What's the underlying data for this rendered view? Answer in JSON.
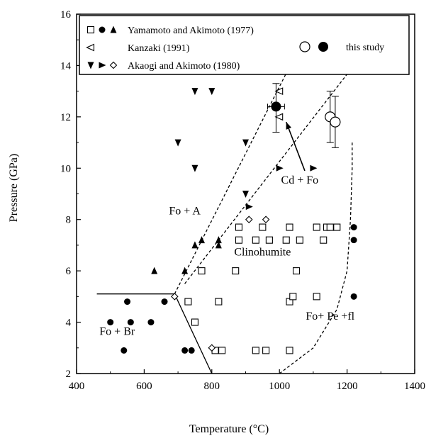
{
  "chart_data": {
    "type": "scatter",
    "title": "",
    "xlabel": "Temperature (°C)",
    "ylabel": "Pressure (GPa)",
    "xlim": [
      400,
      1400
    ],
    "ylim": [
      2,
      16
    ],
    "xticks": [
      400,
      600,
      800,
      1000,
      1200,
      1400
    ],
    "yticks": [
      2,
      4,
      6,
      8,
      10,
      12,
      14,
      16
    ],
    "grid": false,
    "legend": {
      "placement": "top",
      "entries": [
        {
          "label": "Yamamoto and Akimoto (1977)",
          "markers": [
            "open-square",
            "filled-circle",
            "filled-triangle-up"
          ]
        },
        {
          "label": "Kanzaki (1991)",
          "markers": [
            "open-triangle-left"
          ]
        },
        {
          "label": "Akaogi and Akimoto (1980)",
          "markers": [
            "filled-triangle-down",
            "filled-triangle-right",
            "open-diamond"
          ]
        },
        {
          "label": "this study",
          "markers": [
            "open-circle-large",
            "filled-circle-large"
          ]
        }
      ]
    },
    "series": [
      {
        "marker": "open-square",
        "points": [
          [
            730,
            4.8
          ],
          [
            750,
            4.0
          ],
          [
            770,
            6.0
          ],
          [
            820,
            4.8
          ],
          [
            810,
            2.9
          ],
          [
            830,
            2.9
          ],
          [
            870,
            6.0
          ],
          [
            880,
            7.7
          ],
          [
            880,
            7.2
          ],
          [
            930,
            7.2
          ],
          [
            930,
            2.9
          ],
          [
            950,
            7.7
          ],
          [
            960,
            2.9
          ],
          [
            970,
            7.2
          ],
          [
            1020,
            7.2
          ],
          [
            1030,
            4.8
          ],
          [
            1030,
            7.7
          ],
          [
            1040,
            5.0
          ],
          [
            1050,
            6.0
          ],
          [
            1060,
            7.2
          ],
          [
            1030,
            2.9
          ],
          [
            1110,
            7.7
          ],
          [
            1110,
            5.0
          ],
          [
            1130,
            7.2
          ],
          [
            1140,
            7.7
          ],
          [
            1150,
            7.7
          ],
          [
            1170,
            7.7
          ]
        ]
      },
      {
        "marker": "filled-circle",
        "points": [
          [
            500,
            4.0
          ],
          [
            540,
            2.9
          ],
          [
            550,
            4.8
          ],
          [
            560,
            4.0
          ],
          [
            620,
            4.0
          ],
          [
            660,
            4.8
          ],
          [
            720,
            2.9
          ],
          [
            740,
            2.9
          ],
          [
            1220,
            7.7
          ],
          [
            1220,
            7.2
          ],
          [
            1220,
            5.0
          ]
        ]
      },
      {
        "marker": "filled-triangle-up",
        "points": [
          [
            630,
            6.0
          ],
          [
            720,
            6.0
          ],
          [
            750,
            7.0
          ],
          [
            770,
            7.2
          ],
          [
            820,
            7.0
          ],
          [
            820,
            7.2
          ]
        ]
      },
      {
        "marker": "open-triangle-left",
        "points": [
          [
            1000,
            13.0
          ],
          [
            1000,
            12.0
          ]
        ]
      },
      {
        "marker": "filled-triangle-down",
        "points": [
          [
            700,
            11.0
          ],
          [
            750,
            13.0
          ],
          [
            750,
            10.0
          ],
          [
            800,
            13.0
          ],
          [
            900,
            11.0
          ],
          [
            900,
            9.0
          ]
        ]
      },
      {
        "marker": "filled-triangle-right",
        "points": [
          [
            1000,
            10.0
          ],
          [
            1100,
            10.0
          ],
          [
            910,
            8.5
          ]
        ]
      },
      {
        "marker": "open-diamond",
        "points": [
          [
            690,
            5.0
          ],
          [
            800,
            3.0
          ],
          [
            910,
            8.0
          ],
          [
            960,
            8.0
          ]
        ]
      },
      {
        "marker": "open-circle-large",
        "points": [
          [
            1150,
            12.0
          ],
          [
            1165,
            11.8
          ]
        ]
      },
      {
        "marker": "filled-circle-large",
        "points": [
          [
            990,
            12.4
          ]
        ]
      }
    ],
    "error_bars": [
      {
        "x": 990,
        "y": 12.4,
        "xerr": 25,
        "yerr_up": 0.9,
        "yerr_down": 1.0
      },
      {
        "x": 1150,
        "y": 12.0,
        "yerr_up": 1.0,
        "yerr_down": 1.0
      },
      {
        "x": 1165,
        "y": 11.8,
        "yerr_up": 1.0,
        "yerr_down": 1.0
      }
    ],
    "boundaries": [
      {
        "style": "solid",
        "points": [
          [
            460,
            5.1
          ],
          [
            690,
            5.1
          ]
        ]
      },
      {
        "style": "solid",
        "points": [
          [
            690,
            5.1
          ],
          [
            800,
            2.0
          ]
        ]
      },
      {
        "style": "dashed",
        "points": [
          [
            690,
            5.1
          ],
          [
            1070,
            15.0
          ]
        ]
      },
      {
        "style": "dashed",
        "points": [
          [
            720,
            5.5
          ],
          [
            1220,
            14.0
          ]
        ]
      },
      {
        "style": "dashed",
        "points": [
          [
            1000,
            2.0
          ],
          [
            1100,
            3.0
          ],
          [
            1170,
            4.5
          ],
          [
            1200,
            6.0
          ],
          [
            1210,
            8.0
          ],
          [
            1215,
            10.0
          ],
          [
            1215,
            11.0
          ]
        ]
      }
    ],
    "annotations": [
      {
        "text": "Fo + A",
        "x": 720,
        "y": 8.2
      },
      {
        "text": "Cd + Fo",
        "x": 1060,
        "y": 9.4
      },
      {
        "text": "Clinohumite",
        "x": 950,
        "y": 6.6
      },
      {
        "text": "Fo + Br",
        "x": 520,
        "y": 3.5
      },
      {
        "text": "Fo+ Pe +fl",
        "x": 1150,
        "y": 4.1
      }
    ],
    "arrow": {
      "from": [
        1075,
        9.9
      ],
      "to": [
        1020,
        11.8
      ]
    }
  }
}
